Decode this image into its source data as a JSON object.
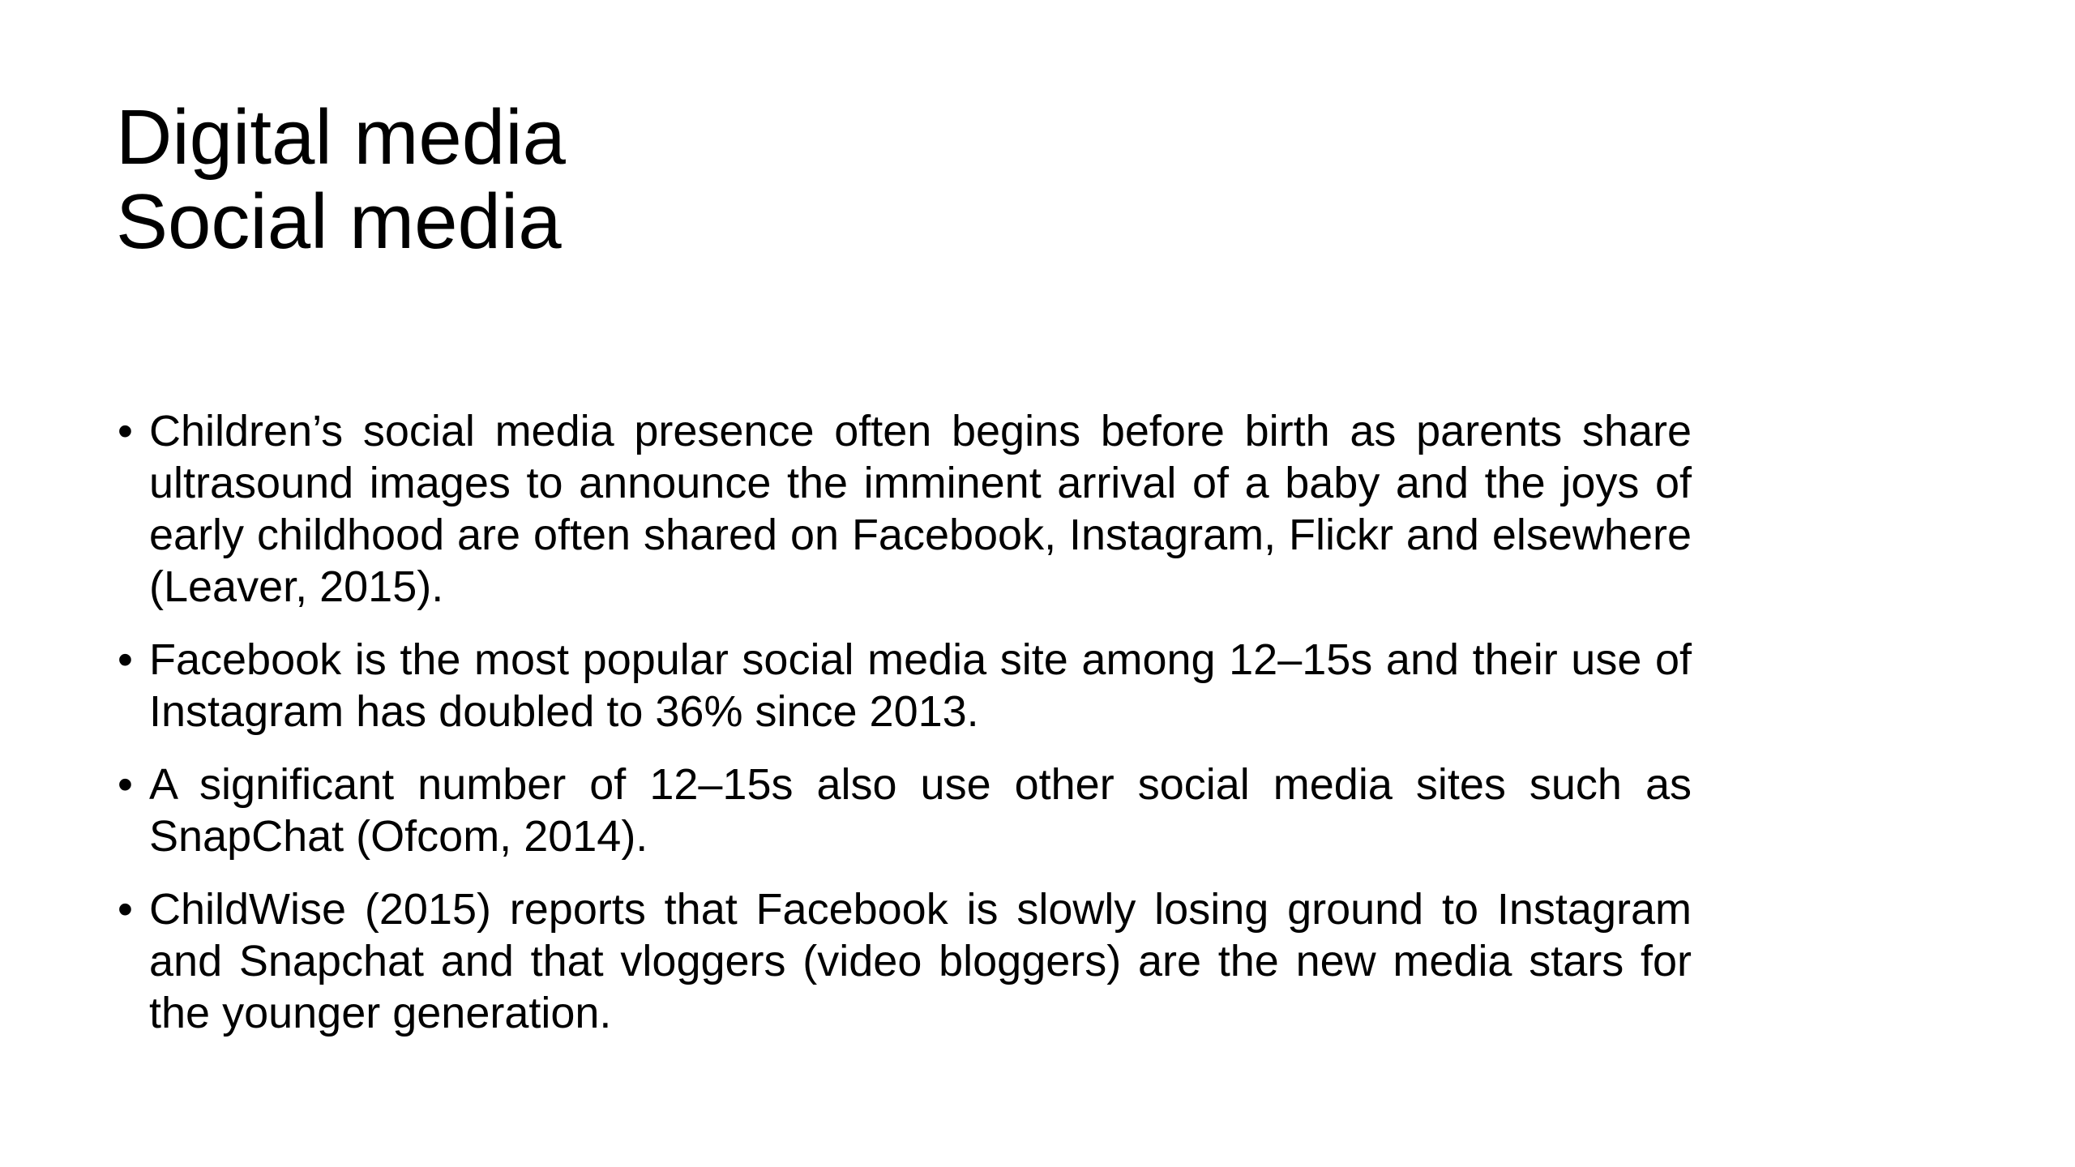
{
  "slide": {
    "title_lines": [
      "Digital media",
      "Social media"
    ],
    "bullets": [
      "Children’s social media presence often begins before birth as parents share ultrasound images to announce the imminent arrival of a baby and the joys of early childhood are often shared on Facebook, Instagram, Flickr and elsewhere (Leaver, 2015).",
      "Facebook is the most popular social media site among 12–15s and their use of Instagram has doubled to 36% since 2013.",
      "A significant number of 12–15s also use other social media sites such as SnapChat (Ofcom, 2014).",
      "ChildWise (2015) reports that Facebook is slowly losing ground to Instagram and Snapchat and that vloggers (video bloggers) are the new media stars for the younger generation."
    ],
    "bullet_glyph": "•"
  }
}
